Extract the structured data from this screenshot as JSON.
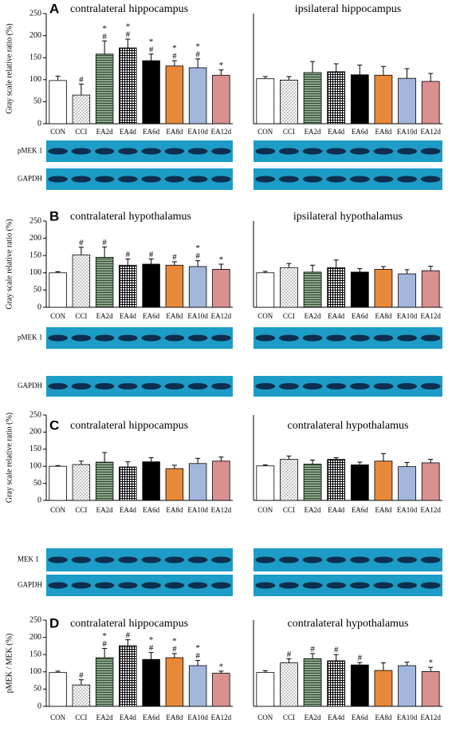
{
  "chart_data": [
    {
      "type": "bar",
      "panel": "A",
      "title": "contralateral hippocampus",
      "ylabel": "Gray  scale relative ratio  (%)",
      "categories": [
        "CON",
        "CCI",
        "EA2d",
        "EA4d",
        "EA6d",
        "EA8d",
        "EA10d",
        "EA12d"
      ],
      "values": [
        98,
        65,
        158,
        172,
        143,
        131,
        127,
        110
      ],
      "errors": [
        10,
        25,
        30,
        20,
        15,
        12,
        20,
        12
      ],
      "annotations": [
        [],
        [
          "#"
        ],
        [
          "*",
          "#"
        ],
        [
          "*",
          "#"
        ],
        [
          "*",
          "#"
        ],
        [
          "*",
          "#"
        ],
        [
          "*",
          "#"
        ],
        [
          "*"
        ]
      ],
      "colors": [
        "#ffffff",
        "#ffffff",
        "#6e8a6e",
        "#ffffff",
        "#000000",
        "#e8893a",
        "#a3b6dc",
        "#d9908f"
      ],
      "patterns": [
        null,
        "dots",
        "hlines",
        "grid",
        null,
        null,
        null,
        null
      ],
      "blot_labels": [
        "pMEK 1",
        "GAPDH"
      ],
      "ylim": [
        0,
        250
      ],
      "yticks": [
        0,
        50,
        100,
        150,
        200,
        250
      ]
    },
    {
      "type": "bar",
      "title": "ipsilateral hippocampus",
      "categories": [
        "CON",
        "CCI",
        "EA2d",
        "EA4d",
        "EA6d",
        "EA8d",
        "EA10d",
        "EA12d"
      ],
      "values": [
        102,
        99,
        116,
        118,
        111,
        110,
        103,
        96
      ],
      "errors": [
        5,
        8,
        25,
        18,
        22,
        20,
        22,
        18
      ],
      "colors": [
        "#ffffff",
        "#ffffff",
        "#6e8a6e",
        "#ffffff",
        "#000000",
        "#e8893a",
        "#a3b6dc",
        "#d9908f"
      ],
      "patterns": [
        null,
        "dots",
        "hlines",
        "grid",
        null,
        null,
        null,
        null
      ],
      "ylim": [
        0,
        250
      ]
    },
    {
      "type": "bar",
      "panel": "B",
      "title": "contralateral hypothalamus",
      "ylabel": "Gray  scale relative ratio  (%)",
      "categories": [
        "CON",
        "CCI",
        "EA2d",
        "EA4d",
        "EA6d",
        "EA8d",
        "EA10d",
        "EA12d"
      ],
      "values": [
        100,
        152,
        145,
        122,
        125,
        122,
        118,
        110
      ],
      "errors": [
        3,
        22,
        30,
        18,
        15,
        10,
        17,
        15
      ],
      "annotations": [
        [],
        [
          "#"
        ],
        [
          "#"
        ],
        [
          "#"
        ],
        [
          "#"
        ],
        [
          "#"
        ],
        [
          "*",
          "#"
        ],
        [
          "*"
        ]
      ],
      "colors": [
        "#ffffff",
        "#ffffff",
        "#6e8a6e",
        "#ffffff",
        "#000000",
        "#e8893a",
        "#a3b6dc",
        "#d9908f"
      ],
      "patterns": [
        null,
        "dots",
        "hlines",
        "grid",
        null,
        null,
        null,
        null
      ],
      "blot_labels": [
        "pMEK 1",
        "GAPDH"
      ],
      "ylim": [
        0,
        250
      ],
      "yticks": [
        0,
        50,
        100,
        150,
        200,
        250
      ]
    },
    {
      "type": "bar",
      "title": "ipsilateral hypothalamus",
      "categories": [
        "CON",
        "CCI",
        "EA2d",
        "EA4d",
        "EA6d",
        "EA8d",
        "EA10d",
        "EA12d"
      ],
      "values": [
        100,
        115,
        102,
        115,
        102,
        110,
        97,
        106
      ],
      "errors": [
        4,
        12,
        20,
        22,
        10,
        8,
        12,
        13
      ],
      "colors": [
        "#ffffff",
        "#ffffff",
        "#6e8a6e",
        "#ffffff",
        "#000000",
        "#e8893a",
        "#a3b6dc",
        "#d9908f"
      ],
      "patterns": [
        null,
        "dots",
        "hlines",
        "grid",
        null,
        null,
        null,
        null
      ],
      "ylim": [
        0,
        250
      ]
    },
    {
      "type": "bar",
      "panel": "C",
      "title": "contralateral hippocampus",
      "ylabel": "Gray  scale relative ratio  (%)",
      "categories": [
        "CON",
        "CCI",
        "EA2d",
        "EA4d",
        "EA6d",
        "EA8d",
        "EA10d",
        "EA12d"
      ],
      "values": [
        100,
        105,
        112,
        98,
        113,
        93,
        108,
        115
      ],
      "errors": [
        2,
        10,
        28,
        15,
        12,
        10,
        15,
        12
      ],
      "colors": [
        "#ffffff",
        "#ffffff",
        "#6e8a6e",
        "#ffffff",
        "#000000",
        "#e8893a",
        "#a3b6dc",
        "#d9908f"
      ],
      "patterns": [
        null,
        "dots",
        "hlines",
        "grid",
        null,
        null,
        null,
        null
      ],
      "blot_labels": [
        "MEK 1",
        "GAPDH"
      ],
      "ylim": [
        0,
        250
      ],
      "yticks": [
        0,
        50,
        100,
        150,
        200,
        250
      ]
    },
    {
      "type": "bar",
      "title": "contralateral hypothalamus",
      "categories": [
        "CON",
        "CCI",
        "EA2d",
        "EA4d",
        "EA6d",
        "EA8d",
        "EA10d",
        "EA12d"
      ],
      "values": [
        101,
        120,
        106,
        120,
        104,
        115,
        99,
        110
      ],
      "errors": [
        3,
        10,
        12,
        5,
        8,
        22,
        12,
        10
      ],
      "colors": [
        "#ffffff",
        "#ffffff",
        "#6e8a6e",
        "#ffffff",
        "#000000",
        "#e8893a",
        "#a3b6dc",
        "#d9908f"
      ],
      "patterns": [
        null,
        "dots",
        "hlines",
        "grid",
        null,
        null,
        null,
        null
      ],
      "ylim": [
        0,
        250
      ]
    },
    {
      "type": "bar",
      "panel": "D",
      "title": "contralateral hippocampus",
      "ylabel": "pMEK / MEK (%)",
      "categories": [
        "CON",
        "CCI",
        "EA2d",
        "EA4d",
        "EA6d",
        "EA8d",
        "EA10d",
        "EA12d"
      ],
      "values": [
        98,
        62,
        141,
        176,
        136,
        141,
        118,
        96
      ],
      "errors": [
        4,
        15,
        27,
        17,
        20,
        12,
        15,
        6
      ],
      "annotations": [
        [],
        [
          "#"
        ],
        [
          "*",
          "#"
        ],
        [
          "#"
        ],
        [
          "*",
          "#"
        ],
        [
          "*",
          "#"
        ],
        [
          "*",
          "#"
        ],
        [
          "*"
        ]
      ],
      "colors": [
        "#ffffff",
        "#ffffff",
        "#6e8a6e",
        "#ffffff",
        "#000000",
        "#e8893a",
        "#a3b6dc",
        "#d9908f"
      ],
      "patterns": [
        null,
        "dots",
        "hlines",
        "grid",
        null,
        null,
        null,
        null
      ],
      "ylim": [
        0,
        250
      ],
      "yticks": [
        0,
        50,
        100,
        150,
        200,
        250
      ]
    },
    {
      "type": "bar",
      "title": "contralateral hypothalamus",
      "categories": [
        "CON",
        "CCI",
        "EA2d",
        "EA4d",
        "EA6d",
        "EA8d",
        "EA10d",
        "EA12d"
      ],
      "values": [
        98,
        126,
        138,
        132,
        120,
        104,
        118,
        101
      ],
      "errors": [
        5,
        12,
        15,
        18,
        7,
        22,
        10,
        12
      ],
      "annotations": [
        [],
        [
          "#"
        ],
        [
          "#"
        ],
        [
          "#"
        ],
        [
          "#"
        ],
        [],
        [],
        [
          "*"
        ]
      ],
      "colors": [
        "#ffffff",
        "#ffffff",
        "#6e8a6e",
        "#ffffff",
        "#000000",
        "#e8893a",
        "#a3b6dc",
        "#d9908f"
      ],
      "patterns": [
        null,
        "dots",
        "hlines",
        "grid",
        null,
        null,
        null,
        null
      ],
      "ylim": [
        0,
        250
      ]
    }
  ]
}
